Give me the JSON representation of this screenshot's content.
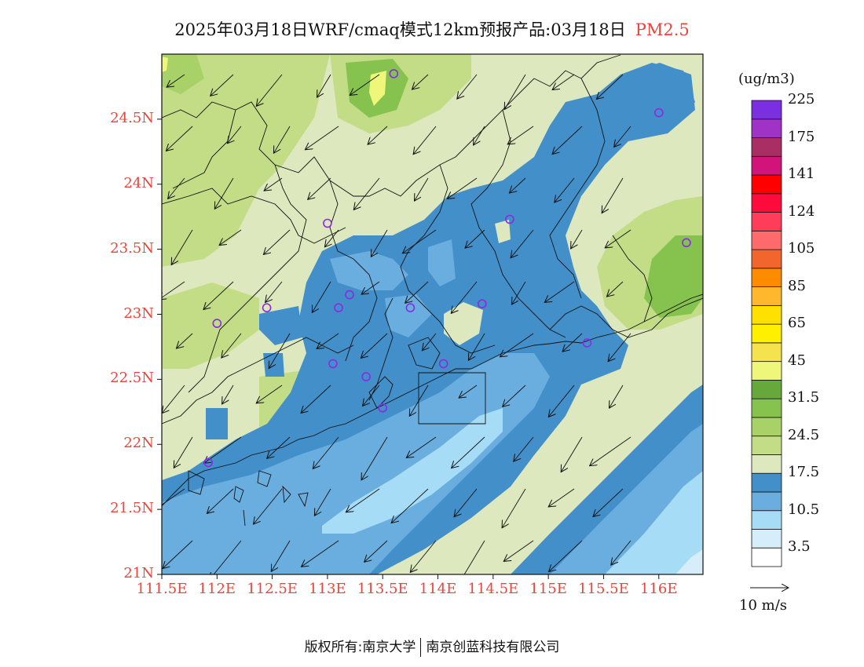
{
  "title": {
    "main": "2025年03月18日WRF/cmaq模式12km预报产品:03月18日",
    "pollutant": "PM2.5"
  },
  "axes": {
    "lat_labels": [
      {
        "text": "24.5N",
        "value": 24.5
      },
      {
        "text": "24N",
        "value": 24.0
      },
      {
        "text": "23.5N",
        "value": 23.5
      },
      {
        "text": "23N",
        "value": 23.0
      },
      {
        "text": "22.5N",
        "value": 22.5
      },
      {
        "text": "22N",
        "value": 22.0
      },
      {
        "text": "21.5N",
        "value": 21.5
      },
      {
        "text": "21N",
        "value": 21.0
      }
    ],
    "lon_labels": [
      {
        "text": "111.5E",
        "value": 111.5
      },
      {
        "text": "112E",
        "value": 112.0
      },
      {
        "text": "112.5E",
        "value": 112.5
      },
      {
        "text": "113E",
        "value": 113.0
      },
      {
        "text": "113.5E",
        "value": 113.5
      },
      {
        "text": "114E",
        "value": 114.0
      },
      {
        "text": "114.5E",
        "value": 114.5
      },
      {
        "text": "115E",
        "value": 115.0
      },
      {
        "text": "115.5E",
        "value": 115.5
      },
      {
        "text": "116E",
        "value": 116.0
      }
    ],
    "lon_range": [
      111.5,
      116.4
    ],
    "lat_range": [
      21.0,
      25.0
    ]
  },
  "colorbar": {
    "units": "(ug/m3)",
    "colors": [
      "#ffffff",
      "#d6eefa",
      "#a6dcf6",
      "#6aaedf",
      "#428fca",
      "#dde8be",
      "#c3dc86",
      "#a8d168",
      "#86c24e",
      "#66a83c",
      "#eef77a",
      "#f4e34c",
      "#fff000",
      "#ffe000",
      "#ffb82e",
      "#ff8c00",
      "#f2662e",
      "#ff6a6a",
      "#ff3c5a",
      "#ff0a3c",
      "#ff0000",
      "#d2147a",
      "#a82e64",
      "#a032c8",
      "#7b2fe0"
    ],
    "labels": [
      {
        "text": "3.5",
        "after": 1
      },
      {
        "text": "10.5",
        "after": 3
      },
      {
        "text": "17.5",
        "after": 5
      },
      {
        "text": "24.5",
        "after": 7
      },
      {
        "text": "31.5",
        "after": 9
      },
      {
        "text": "45",
        "after": 11
      },
      {
        "text": "65",
        "after": 13
      },
      {
        "text": "85",
        "after": 15
      },
      {
        "text": "105",
        "after": 17
      },
      {
        "text": "124",
        "after": 19
      },
      {
        "text": "141",
        "after": 21
      },
      {
        "text": "175",
        "after": 23
      },
      {
        "text": "225",
        "after": 25
      }
    ]
  },
  "wind_reference": {
    "label": "10 m/s",
    "speed": 10
  },
  "wind_direction": "northeasterly",
  "stations": [
    {
      "lon": 113.6,
      "lat": 24.85
    },
    {
      "lon": 116.0,
      "lat": 24.55
    },
    {
      "lon": 113.0,
      "lat": 23.7
    },
    {
      "lon": 114.65,
      "lat": 23.73
    },
    {
      "lon": 116.25,
      "lat": 23.55
    },
    {
      "lon": 113.2,
      "lat": 23.15
    },
    {
      "lon": 113.1,
      "lat": 23.05
    },
    {
      "lon": 112.45,
      "lat": 23.05
    },
    {
      "lon": 113.75,
      "lat": 23.05
    },
    {
      "lon": 114.4,
      "lat": 23.08
    },
    {
      "lon": 112.0,
      "lat": 22.93
    },
    {
      "lon": 115.35,
      "lat": 22.78
    },
    {
      "lon": 113.05,
      "lat": 22.62
    },
    {
      "lon": 114.05,
      "lat": 22.62
    },
    {
      "lon": 113.35,
      "lat": 22.52
    },
    {
      "lon": 113.5,
      "lat": 22.28
    },
    {
      "lon": 111.92,
      "lat": 21.86
    }
  ],
  "copyright": {
    "prefix": "版权所有:",
    "org1": "南京大学",
    "org2": "南京创蓝科技有限公司"
  }
}
